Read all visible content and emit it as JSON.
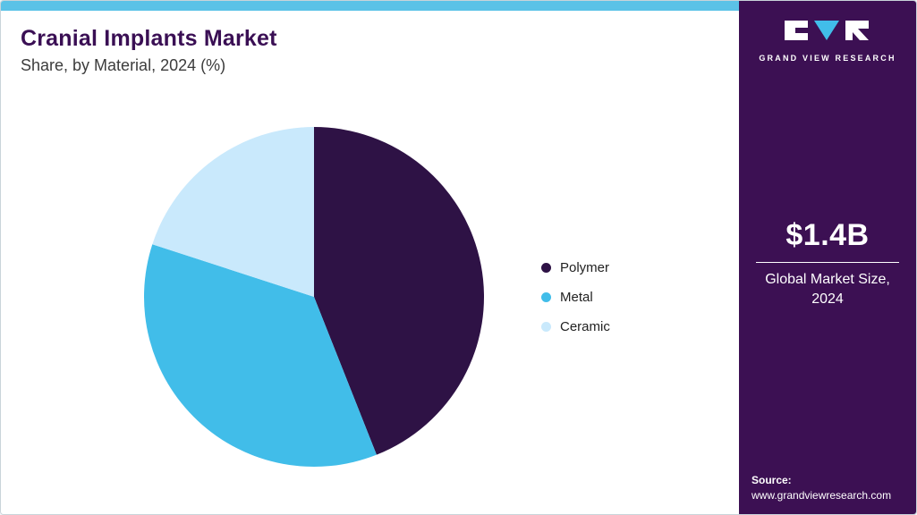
{
  "header": {
    "title": "Cranial Implants Market",
    "subtitle": "Share, by Material, 2024 (%)"
  },
  "chart_data": {
    "type": "pie",
    "title": "Cranial Implants Market Share, by Material, 2024 (%)",
    "categories": [
      "Polymer",
      "Metal",
      "Ceramic"
    ],
    "values": [
      44,
      36,
      20
    ],
    "unit": "%",
    "colors": [
      "#2E1245",
      "#41BDE9",
      "#C9E9FC"
    ],
    "start_angle_deg": 0,
    "direction": "clockwise",
    "legend_position": "right"
  },
  "sidebar": {
    "logo_text": "GRAND VIEW RESEARCH",
    "market_size": "$1.4B",
    "market_size_label": "Global Market Size, 2024",
    "source_label": "Source:",
    "source_url": "www.grandviewresearch.com"
  },
  "colors": {
    "top_bar": "#5BC2E7",
    "sidebar_bg": "#3C1053",
    "title_text": "#3A0F54",
    "accent_cyan": "#41BDE9"
  }
}
